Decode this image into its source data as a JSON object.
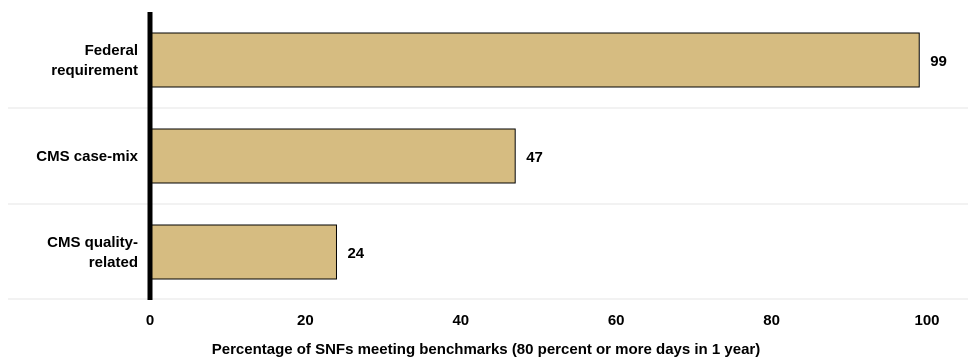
{
  "chart_data": {
    "type": "bar",
    "orientation": "horizontal",
    "categories": [
      [
        "Federal",
        "requirement"
      ],
      [
        "CMS case-mix"
      ],
      [
        "CMS quality-",
        "related"
      ]
    ],
    "values": [
      99,
      47,
      24
    ],
    "value_labels": [
      "99",
      "47",
      "24"
    ],
    "xlabel": "Percentage of SNFs meeting benchmarks (80 percent or more days in 1 year)",
    "xlim": [
      0,
      100
    ],
    "xticks": [
      0,
      20,
      40,
      60,
      80,
      100
    ],
    "grid": false,
    "legend": "none",
    "colors": {
      "bar_fill": "#d6bc81",
      "bar_stroke": "#000000",
      "axis": "#000000",
      "separator": "#e6e6e6"
    }
  }
}
